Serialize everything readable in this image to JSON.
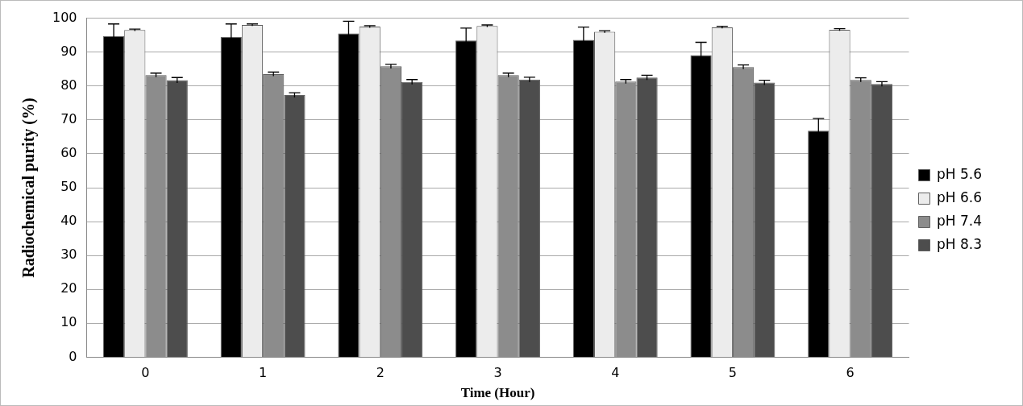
{
  "chart_data": {
    "type": "bar",
    "xlabel": "Time (Hour)",
    "ylabel": "Radiochemical purity (%)",
    "categories": [
      "0",
      "1",
      "2",
      "3",
      "4",
      "5",
      "6"
    ],
    "series": [
      {
        "name": "pH 5.6",
        "color": "#000000",
        "values": [
          94.7,
          94.5,
          95.5,
          93.4,
          93.6,
          89.1,
          66.8
        ],
        "errors": [
          3.6,
          3.8,
          3.6,
          3.7,
          3.8,
          3.8,
          3.6
        ]
      },
      {
        "name": "pH 6.6",
        "color": "#ececec",
        "values": [
          96.5,
          98,
          97.5,
          97.7,
          96,
          97.3,
          96.6
        ],
        "errors": [
          0.3,
          0.3,
          0.3,
          0.3,
          0.3,
          0.3,
          0.3
        ]
      },
      {
        "name": "pH 7.4",
        "color": "#8c8c8c",
        "values": [
          83.2,
          83.5,
          85.8,
          83.2,
          81.3,
          85.6,
          81.8
        ],
        "errors": [
          0.6,
          0.6,
          0.6,
          0.6,
          0.6,
          0.6,
          0.6
        ]
      },
      {
        "name": "pH 8.3",
        "color": "#4d4d4d",
        "values": [
          81.7,
          77.3,
          81.2,
          81.9,
          82.5,
          81,
          80.6
        ],
        "errors": [
          0.8,
          0.7,
          0.7,
          0.7,
          0.7,
          0.7,
          0.7
        ]
      }
    ],
    "ylim": [
      0,
      100
    ],
    "yticks": [
      0,
      10,
      20,
      30,
      40,
      50,
      60,
      70,
      80,
      90,
      100
    ],
    "grid": "y",
    "legend": "right"
  }
}
